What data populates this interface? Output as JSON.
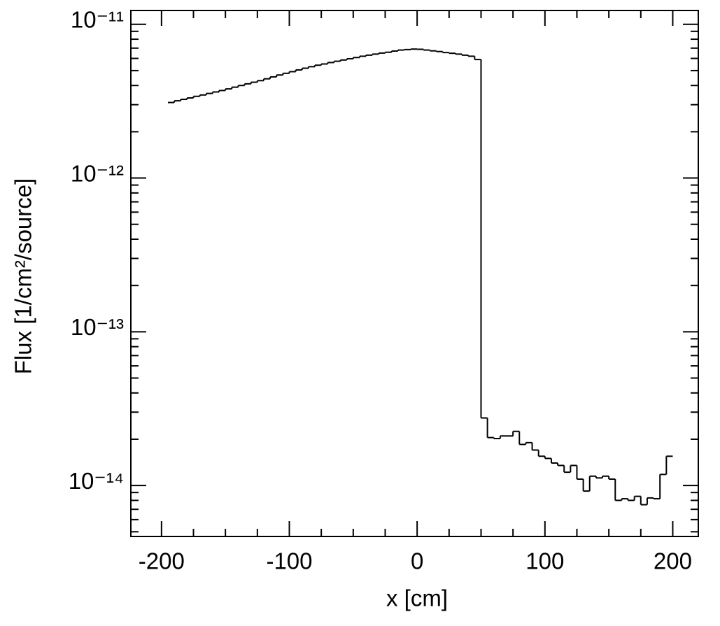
{
  "chart_data": {
    "type": "histogram",
    "xlabel": "x [cm]",
    "ylabel": "Flux [1/cm²/source]",
    "log_y": true,
    "color": "#000000",
    "bins": [
      -195,
      -190,
      -185,
      -180,
      -175,
      -170,
      -165,
      -160,
      -155,
      -150,
      -145,
      -140,
      -135,
      -130,
      -125,
      -120,
      -115,
      -110,
      -105,
      -100,
      -95,
      -90,
      -85,
      -80,
      -75,
      -70,
      -65,
      -60,
      -55,
      -50,
      -45,
      -40,
      -35,
      -30,
      -25,
      -20,
      -15,
      -10,
      -5,
      0,
      5,
      10,
      15,
      20,
      25,
      30,
      35,
      40,
      45,
      50,
      55,
      60,
      65,
      70,
      75,
      80,
      85,
      90,
      95,
      100,
      105,
      110,
      115,
      120,
      125,
      130,
      135,
      140,
      145,
      150,
      155,
      160,
      165,
      170,
      175,
      180,
      185,
      190,
      195,
      200
    ],
    "values": [
      3.1e-12,
      3.18e-12,
      3.25e-12,
      3.32e-12,
      3.4e-12,
      3.47e-12,
      3.55e-12,
      3.63e-12,
      3.71e-12,
      3.8e-12,
      3.9e-12,
      4e-12,
      4.1e-12,
      4.2e-12,
      4.3e-12,
      4.42e-12,
      4.55e-12,
      4.68e-12,
      4.8e-12,
      4.92e-12,
      5.05e-12,
      5.18e-12,
      5.3e-12,
      5.42e-12,
      5.52e-12,
      5.64e-12,
      5.75e-12,
      5.86e-12,
      5.97e-12,
      6.08e-12,
      6.2e-12,
      6.3e-12,
      6.4e-12,
      6.5e-12,
      6.58e-12,
      6.7e-12,
      6.8e-12,
      6.85e-12,
      6.9e-12,
      6.88e-12,
      6.8e-12,
      6.72e-12,
      6.65e-12,
      6.55e-12,
      6.48e-12,
      6.4e-12,
      6.3e-12,
      6.2e-12,
      5.9e-12,
      2.75e-14,
      2.05e-14,
      2.02e-14,
      2.1e-14,
      2.1e-14,
      2.25e-14,
      1.85e-14,
      1.9e-14,
      1.7e-14,
      1.55e-14,
      1.5e-14,
      1.4e-14,
      1.35e-14,
      1.22e-14,
      1.35e-14,
      1.1e-14,
      9.2e-15,
      1.15e-14,
      1.12e-14,
      1.15e-14,
      1.1e-14,
      8e-15,
      8.2e-15,
      8e-15,
      8.5e-15,
      7.5e-15,
      8.3e-15,
      8.2e-15,
      1.18e-14,
      1.55e-14
    ],
    "xlim": [
      -224,
      220
    ],
    "ylim": [
      4.66e-15,
      1.23e-11
    ],
    "xticks": [
      -200,
      -100,
      0,
      100,
      200
    ],
    "xminorticks": [
      -175,
      -150,
      -125,
      -75,
      -50,
      -25,
      25,
      50,
      75,
      125,
      150,
      175
    ],
    "yticks": [
      {
        "value": 1e-11,
        "label": "10⁻¹¹"
      },
      {
        "value": 1e-12,
        "label": "10⁻¹²"
      },
      {
        "value": 1e-13,
        "label": "10⁻¹³"
      },
      {
        "value": 1e-14,
        "label": "10⁻¹⁴"
      }
    ],
    "yminorticks": [
      5e-15,
      6e-15,
      7e-15,
      8e-15,
      9e-15,
      2e-14,
      3e-14,
      4e-14,
      5e-14,
      6e-14,
      7e-14,
      8e-14,
      9e-14,
      2e-13,
      3e-13,
      4e-13,
      5e-13,
      6e-13,
      7e-13,
      8e-13,
      9e-13,
      2e-12,
      3e-12,
      4e-12,
      5e-12,
      6e-12,
      7e-12,
      8e-12,
      9e-12
    ]
  }
}
